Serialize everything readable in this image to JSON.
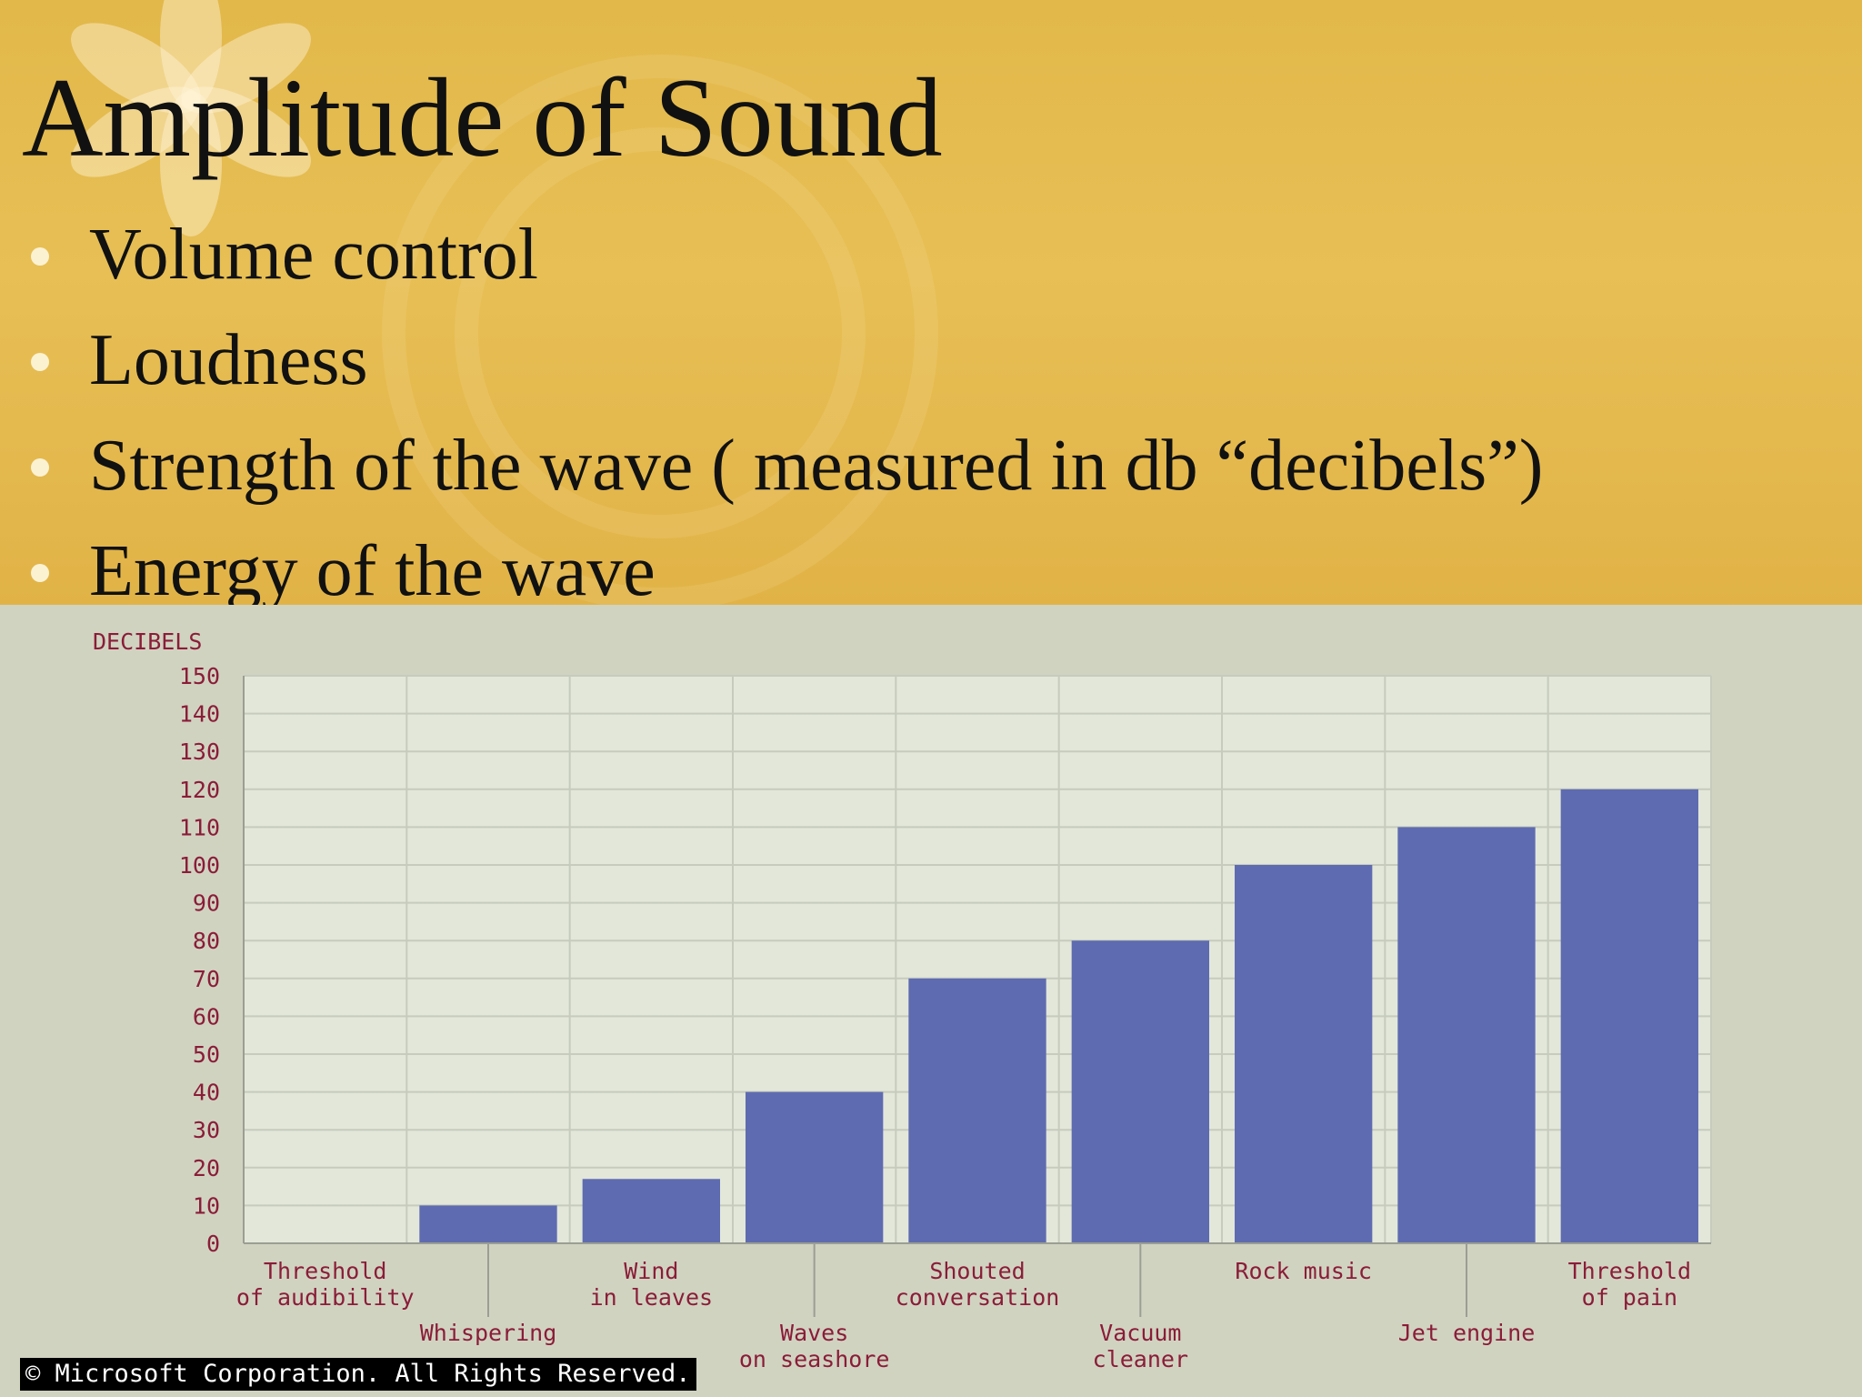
{
  "slide": {
    "title": "Amplitude of Sound",
    "bullets": [
      "Volume control",
      "Loudness",
      "Strength of the wave ( measured in db “decibels”)",
      "Energy of the wave"
    ],
    "copyright": "© Microsoft Corporation. All Rights Reserved."
  },
  "colors": {
    "background_top": "#e3b94c",
    "chart_background": "#d1d3c1",
    "plot_area": "#e2e7da",
    "bar": "#5f6bb0",
    "axis_label": "#8a1d38"
  },
  "chart_data": {
    "type": "bar",
    "ylabel": "DECIBELS",
    "ylim": [
      0,
      150
    ],
    "yticks": [
      0,
      10,
      20,
      30,
      40,
      50,
      60,
      70,
      80,
      90,
      100,
      110,
      120,
      130,
      140,
      150
    ],
    "grid": true,
    "categories": [
      [
        "Threshold",
        "of audibility"
      ],
      [
        "Whispering"
      ],
      [
        "Wind",
        "in leaves"
      ],
      [
        "Waves",
        "on seashore"
      ],
      [
        "Shouted",
        "conversation"
      ],
      [
        "Vacuum",
        "cleaner"
      ],
      [
        "Rock music"
      ],
      [
        "Jet engine"
      ],
      [
        "Threshold",
        "of pain"
      ]
    ],
    "values": [
      0,
      10,
      17,
      40,
      70,
      80,
      100,
      110,
      120
    ]
  }
}
